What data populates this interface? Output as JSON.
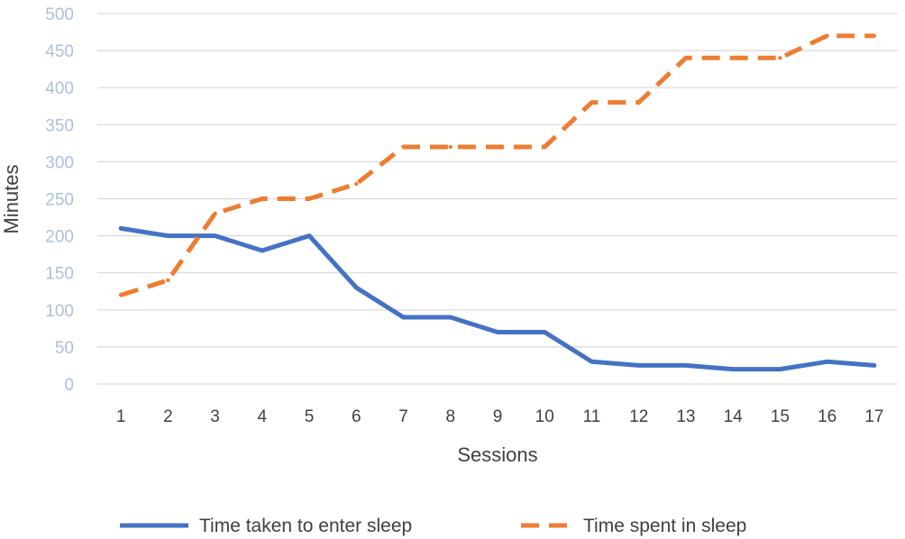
{
  "chart_data": {
    "type": "line",
    "title": "",
    "xlabel": "Sessions",
    "ylabel": "Minutes",
    "categories": [
      "1",
      "2",
      "3",
      "4",
      "5",
      "6",
      "7",
      "8",
      "9",
      "10",
      "11",
      "12",
      "13",
      "14",
      "15",
      "16",
      "17"
    ],
    "ylim": [
      0,
      500
    ],
    "yticks": [
      0,
      50,
      100,
      150,
      200,
      250,
      300,
      350,
      400,
      450,
      500
    ],
    "grid": true,
    "legend_position": "bottom",
    "series": [
      {
        "name": "Time taken to enter sleep",
        "style": "solid",
        "color": "#4472c4",
        "values": [
          210,
          200,
          200,
          180,
          200,
          130,
          90,
          90,
          70,
          70,
          30,
          25,
          25,
          20,
          20,
          30,
          25
        ]
      },
      {
        "name": "Time spent in sleep",
        "style": "dashed",
        "color": "#ed7d31",
        "values": [
          120,
          140,
          230,
          250,
          250,
          270,
          320,
          320,
          320,
          320,
          380,
          380,
          440,
          440,
          440,
          470,
          470
        ]
      }
    ]
  }
}
